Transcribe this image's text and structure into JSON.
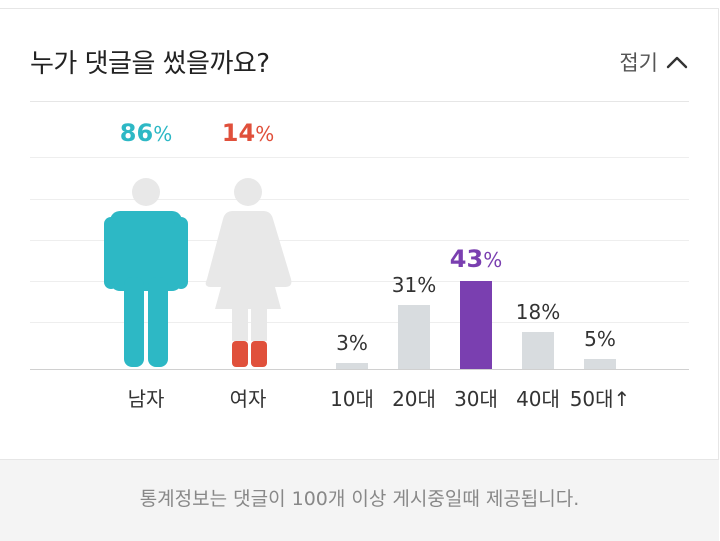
{
  "header": {
    "title": "누가 댓글을 썼을까요?",
    "collapse_label": "접기"
  },
  "colors": {
    "male": "#2db8c5",
    "female": "#e0503b",
    "female_figure": "#e8e8e8",
    "bar_default": "#d8dcdf",
    "bar_highlight": "#7a3fb0"
  },
  "chart_data": [
    {
      "type": "pictograph",
      "categories": [
        "남자",
        "여자"
      ],
      "values": [
        86,
        14
      ],
      "value_labels": [
        "86",
        "14"
      ],
      "unit": "%"
    },
    {
      "type": "bar",
      "categories": [
        "10대",
        "20대",
        "30대",
        "40대",
        "50대↑"
      ],
      "values": [
        3,
        31,
        43,
        18,
        5
      ],
      "value_labels": [
        "3%",
        "31%",
        "43",
        "18%",
        "5%"
      ],
      "highlight_index": 2,
      "highlight_unit": "%",
      "ylim": [
        0,
        100
      ]
    }
  ],
  "footer": {
    "note": "통계정보는 댓글이 100개 이상 게시중일때 제공됩니다."
  }
}
